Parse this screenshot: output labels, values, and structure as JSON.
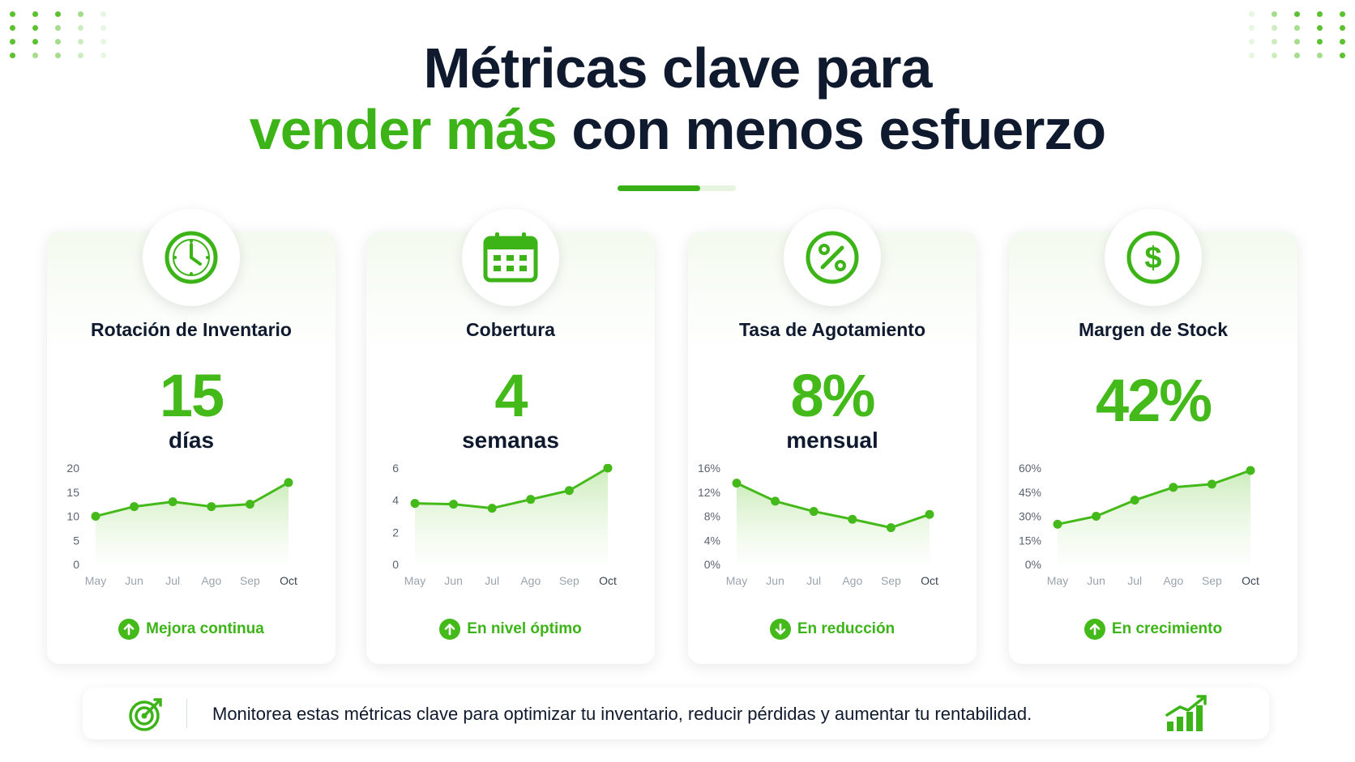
{
  "header": {
    "title_line1": "Métricas clave para",
    "title_line2_highlight": "vender más",
    "title_line2_rest": "con menos esfuerzo"
  },
  "colors": {
    "accent": "#3cb418",
    "dark": "#0f1a2e",
    "light_green": "#e7f4e0"
  },
  "cards": [
    {
      "icon": "clock-icon",
      "title": "Rotación de Inventario",
      "value": "15",
      "unit": "días",
      "status": {
        "direction": "up",
        "label": "Mejora continua"
      },
      "chart": {
        "yticks": [
          "20",
          "15",
          "10",
          "5",
          "0"
        ],
        "ymax": 20,
        "x": [
          "May",
          "Jun",
          "Jul",
          "Ago",
          "Sep",
          "Oct"
        ],
        "values": [
          10,
          12,
          13,
          12,
          12.5,
          17
        ]
      }
    },
    {
      "icon": "calendar-icon",
      "title": "Cobertura",
      "value": "4",
      "unit": "semanas",
      "status": {
        "direction": "up",
        "label": "En nivel óptimo"
      },
      "chart": {
        "yticks": [
          "6",
          "4",
          "2",
          "0"
        ],
        "ymax": 6,
        "x": [
          "May",
          "Jun",
          "Jul",
          "Ago",
          "Sep",
          "Oct"
        ],
        "values": [
          3.8,
          3.75,
          3.5,
          4.05,
          4.6,
          6
        ]
      }
    },
    {
      "icon": "percent-icon",
      "title": "Tasa de Agotamiento",
      "value": "8%",
      "unit": "mensual",
      "status": {
        "direction": "down",
        "label": "En reducción"
      },
      "chart": {
        "yticks": [
          "16%",
          "12%",
          "8%",
          "4%",
          "0%"
        ],
        "ymax": 16,
        "x": [
          "May",
          "Jun",
          "Jul",
          "Ago",
          "Sep",
          "Oct"
        ],
        "values": [
          13.5,
          10.5,
          8.8,
          7.5,
          6.1,
          8.3
        ]
      }
    },
    {
      "icon": "dollar-icon",
      "title": "Margen de Stock",
      "value": "42%",
      "unit": "",
      "status": {
        "direction": "up",
        "label": "En crecimiento"
      },
      "chart": {
        "yticks": [
          "60%",
          "45%",
          "30%",
          "15%",
          "0%"
        ],
        "ymax": 60,
        "x": [
          "May",
          "Jun",
          "Jul",
          "Ago",
          "Sep",
          "Oct"
        ],
        "values": [
          25,
          30,
          40,
          48,
          50,
          58.5
        ]
      }
    }
  ],
  "banner": {
    "text": "Monitorea estas métricas clave para optimizar tu inventario, reducir pérdidas y aumentar tu rentabilidad.",
    "left_icon": "target-icon",
    "right_icon": "growth-chart-icon"
  }
}
